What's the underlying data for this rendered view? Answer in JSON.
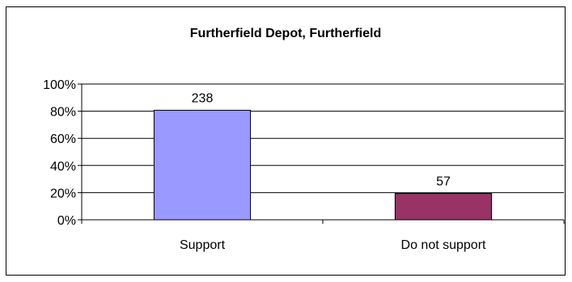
{
  "chart_data": {
    "type": "bar",
    "title": "Furtherfield Depot, Furtherfield",
    "categories": [
      "Support",
      "Do not support"
    ],
    "values": [
      80.7,
      19.3
    ],
    "data_labels": [
      "238",
      "57"
    ],
    "ylim": [
      0,
      100
    ],
    "yticks": [
      "0%",
      "20%",
      "40%",
      "60%",
      "80%",
      "100%"
    ],
    "grid": true,
    "colors": {
      "bars": [
        "#9999ff",
        "#993366"
      ],
      "border": "#000000",
      "background": "#ffffff"
    }
  }
}
